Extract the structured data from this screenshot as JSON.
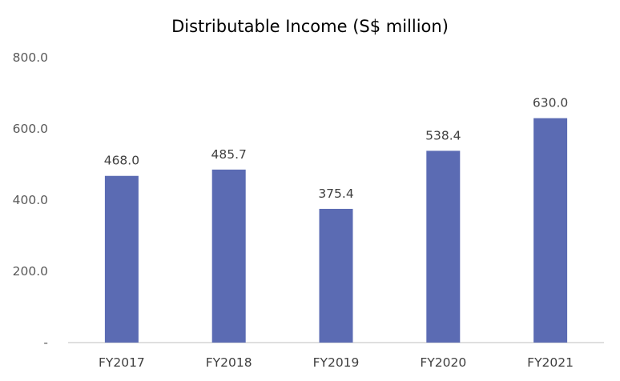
{
  "chart_data": {
    "type": "bar",
    "title": "Distributable Income (S$ million)",
    "categories": [
      "FY2017",
      "FY2018",
      "FY2019",
      "FY2020",
      "FY2021"
    ],
    "series": [
      {
        "values": [
          468.0,
          485.7,
          375.4,
          538.4,
          630.0
        ],
        "color": "#5b6bb3"
      }
    ],
    "data_labels": [
      "468.0",
      "485.7",
      "375.4",
      "538.4",
      "630.0"
    ],
    "y_ticks": [
      0,
      200,
      400,
      600,
      800
    ],
    "y_tick_labels": [
      "-",
      "200.0",
      "400.0",
      "600.0",
      "800.0"
    ],
    "xlabel": "",
    "ylabel": "",
    "ylim": [
      0,
      800
    ],
    "grid": false,
    "legend": "none"
  }
}
